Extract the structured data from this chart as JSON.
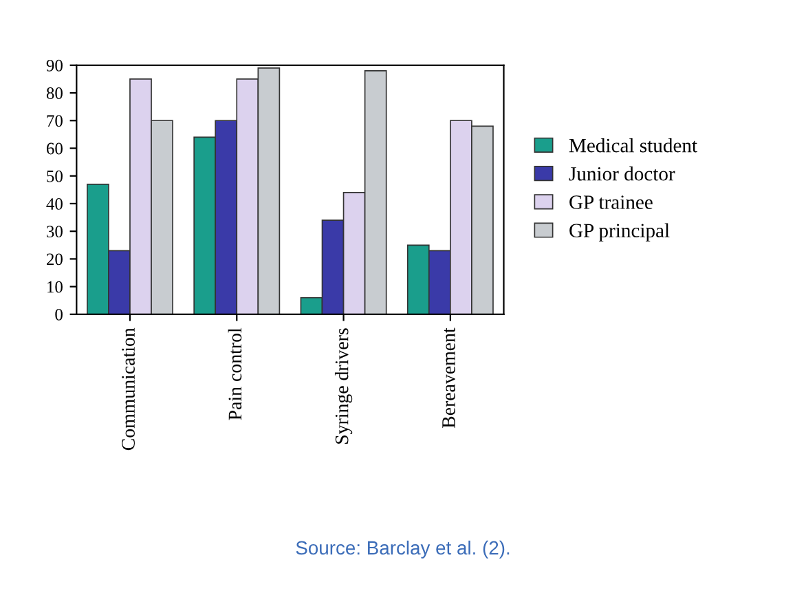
{
  "chart_data": {
    "type": "bar",
    "categories": [
      "Communication",
      "Pain control",
      "Syringe drivers",
      "Bereavement"
    ],
    "series": [
      {
        "name": "Medical student",
        "color": "#1a9e8c",
        "values": [
          47,
          64,
          6,
          25
        ]
      },
      {
        "name": "Junior doctor",
        "color": "#3a3aa8",
        "values": [
          23,
          70,
          34,
          23
        ]
      },
      {
        "name": "GP trainee",
        "color": "#dcd2ee",
        "values": [
          85,
          85,
          44,
          70
        ]
      },
      {
        "name": "GP principal",
        "color": "#c8ccd0",
        "values": [
          70,
          89,
          88,
          68
        ]
      }
    ],
    "ylim": [
      0,
      90
    ],
    "yticks": [
      0,
      10,
      20,
      30,
      40,
      50,
      60,
      70,
      80,
      90
    ],
    "legend": "right",
    "annotations": [
      "Source: Barclay et al. (2)."
    ]
  }
}
